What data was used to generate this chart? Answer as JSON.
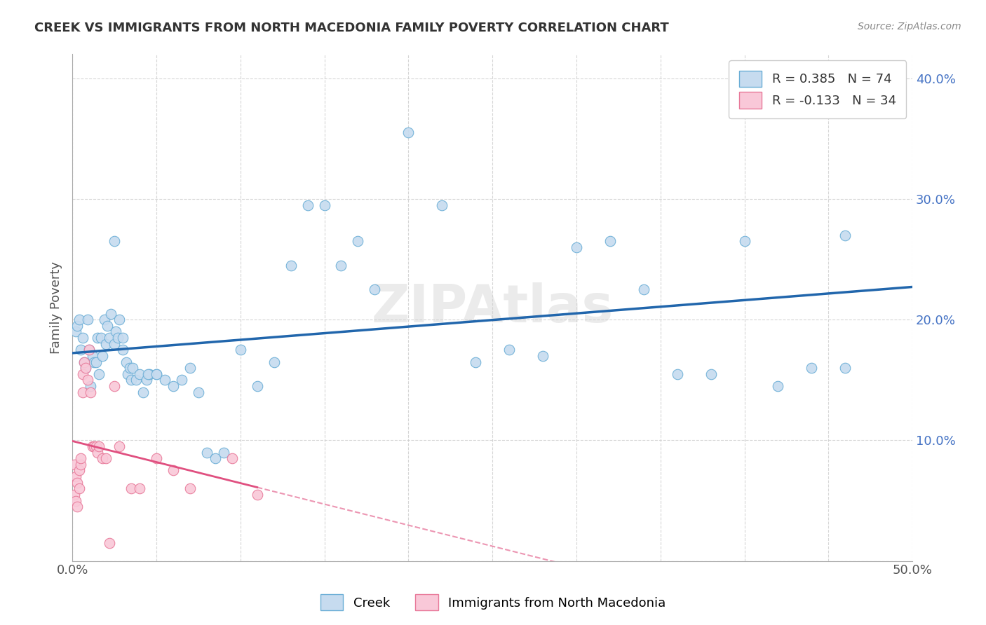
{
  "title": "CREEK VS IMMIGRANTS FROM NORTH MACEDONIA FAMILY POVERTY CORRELATION CHART",
  "source": "Source: ZipAtlas.com",
  "ylabel": "Family Poverty",
  "xlim": [
    0.0,
    0.5
  ],
  "ylim": [
    0.0,
    0.42
  ],
  "creek_color": "#6baed6",
  "creek_color_fill": "#c6dbef",
  "nmac_color_edge": "#e87a9a",
  "nmac_color_fill": "#f9c8d8",
  "creek_r": 0.385,
  "creek_n": 74,
  "nmac_r": -0.133,
  "nmac_n": 34,
  "creek_line_color": "#2166ac",
  "nmac_line_color": "#e05080",
  "creek_x": [
    0.002,
    0.003,
    0.004,
    0.005,
    0.006,
    0.007,
    0.008,
    0.009,
    0.01,
    0.011,
    0.012,
    0.013,
    0.014,
    0.015,
    0.016,
    0.017,
    0.018,
    0.019,
    0.02,
    0.021,
    0.022,
    0.023,
    0.025,
    0.026,
    0.027,
    0.028,
    0.03,
    0.032,
    0.033,
    0.034,
    0.035,
    0.036,
    0.038,
    0.04,
    0.042,
    0.044,
    0.046,
    0.05,
    0.055,
    0.06,
    0.065,
    0.07,
    0.075,
    0.08,
    0.085,
    0.09,
    0.1,
    0.11,
    0.12,
    0.13,
    0.14,
    0.15,
    0.16,
    0.17,
    0.18,
    0.2,
    0.22,
    0.24,
    0.26,
    0.28,
    0.3,
    0.32,
    0.34,
    0.36,
    0.38,
    0.4,
    0.42,
    0.44,
    0.46,
    0.46,
    0.025,
    0.03,
    0.045,
    0.05
  ],
  "creek_y": [
    0.19,
    0.195,
    0.2,
    0.175,
    0.185,
    0.165,
    0.16,
    0.2,
    0.175,
    0.145,
    0.17,
    0.165,
    0.165,
    0.185,
    0.155,
    0.185,
    0.17,
    0.2,
    0.18,
    0.195,
    0.185,
    0.205,
    0.18,
    0.19,
    0.185,
    0.2,
    0.175,
    0.165,
    0.155,
    0.16,
    0.15,
    0.16,
    0.15,
    0.155,
    0.14,
    0.15,
    0.155,
    0.155,
    0.15,
    0.145,
    0.15,
    0.16,
    0.14,
    0.09,
    0.085,
    0.09,
    0.175,
    0.145,
    0.165,
    0.245,
    0.295,
    0.295,
    0.245,
    0.265,
    0.225,
    0.355,
    0.295,
    0.165,
    0.175,
    0.17,
    0.26,
    0.265,
    0.225,
    0.155,
    0.155,
    0.265,
    0.145,
    0.16,
    0.27,
    0.16,
    0.265,
    0.185,
    0.155,
    0.155
  ],
  "nmac_x": [
    0.001,
    0.001,
    0.002,
    0.002,
    0.003,
    0.003,
    0.004,
    0.004,
    0.005,
    0.005,
    0.006,
    0.006,
    0.007,
    0.008,
    0.009,
    0.01,
    0.011,
    0.012,
    0.013,
    0.014,
    0.015,
    0.016,
    0.018,
    0.02,
    0.022,
    0.025,
    0.028,
    0.035,
    0.04,
    0.05,
    0.06,
    0.07,
    0.095,
    0.11
  ],
  "nmac_y": [
    0.08,
    0.055,
    0.07,
    0.05,
    0.065,
    0.045,
    0.075,
    0.06,
    0.08,
    0.085,
    0.155,
    0.14,
    0.165,
    0.16,
    0.15,
    0.175,
    0.14,
    0.095,
    0.095,
    0.095,
    0.09,
    0.095,
    0.085,
    0.085,
    0.015,
    0.145,
    0.095,
    0.06,
    0.06,
    0.085,
    0.075,
    0.06,
    0.085,
    0.055
  ]
}
